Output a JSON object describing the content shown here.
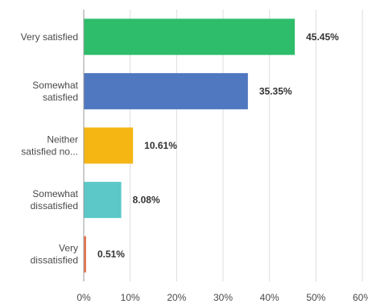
{
  "chart_data": {
    "type": "bar",
    "orientation": "horizontal",
    "categories": [
      [
        "Very satisfied"
      ],
      [
        "Somewhat",
        "satisfied"
      ],
      [
        "Neither",
        "satisfied no..."
      ],
      [
        "Somewhat",
        "dissatisfied"
      ],
      [
        "Very",
        "dissatisfied"
      ]
    ],
    "values": [
      45.45,
      35.35,
      10.61,
      8.08,
      0.51
    ],
    "value_labels": [
      "45.45%",
      "35.35%",
      "10.61%",
      "8.08%",
      "0.51%"
    ],
    "colors": [
      "#2ebd6b",
      "#5078c0",
      "#f5b614",
      "#5cc8c8",
      "#e8724a"
    ],
    "xlim": [
      0,
      60
    ],
    "ticks": [
      0,
      10,
      20,
      30,
      40,
      50,
      60
    ],
    "tick_labels": [
      "0%",
      "10%",
      "20%",
      "30%",
      "40%",
      "50%",
      "60%"
    ],
    "grid": true,
    "title": "",
    "xlabel": "",
    "ylabel": ""
  }
}
